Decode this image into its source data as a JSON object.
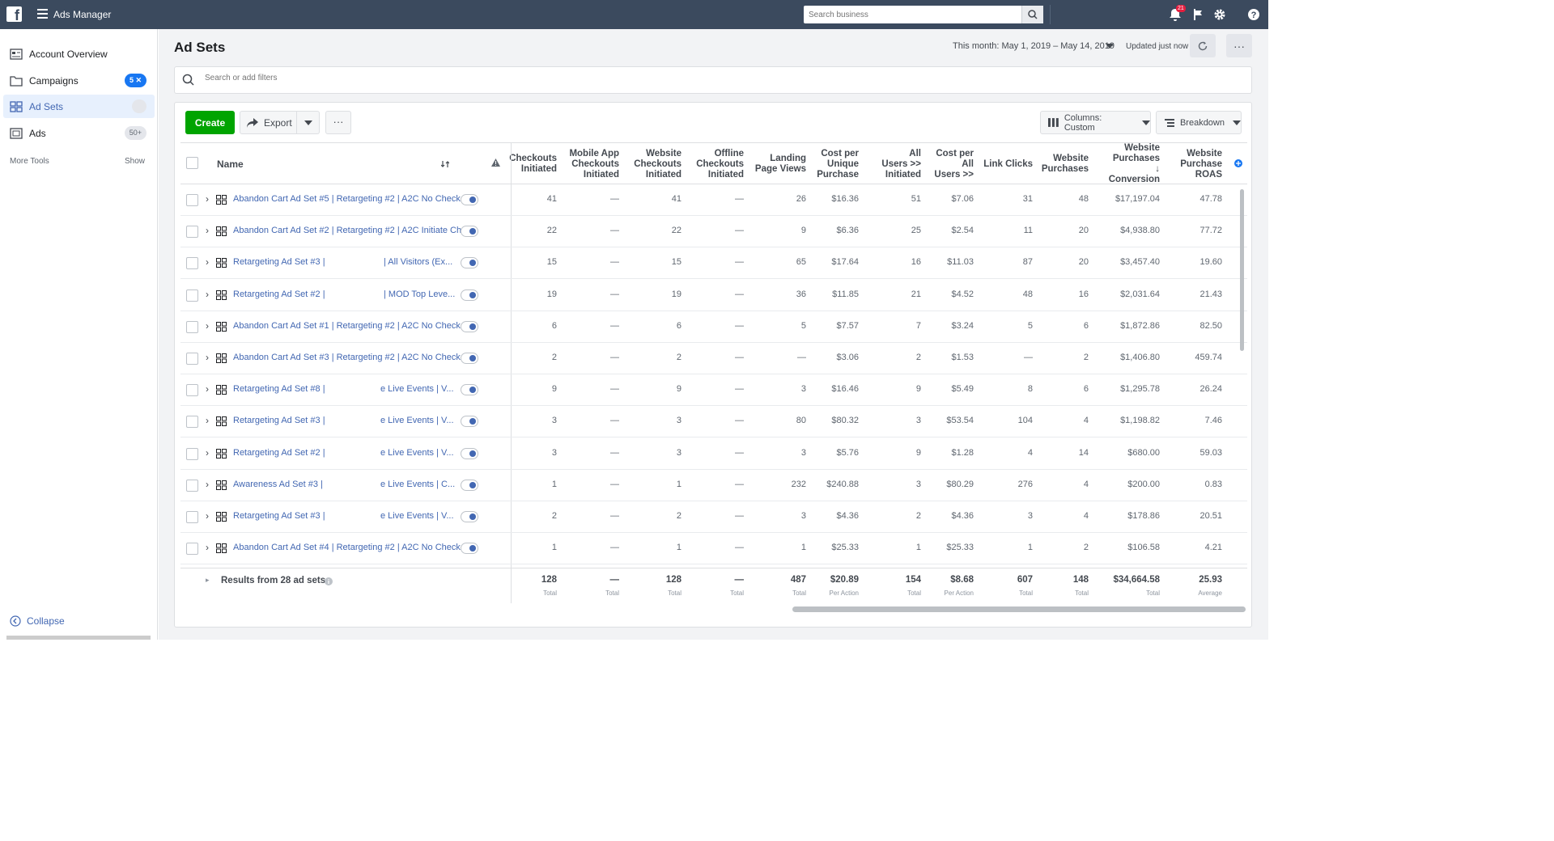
{
  "topbar": {
    "app_title": "Ads Manager",
    "search_placeholder": "Search business",
    "notification_count": "21"
  },
  "sidebar": {
    "items": [
      {
        "label": "Account Overview",
        "badge": ""
      },
      {
        "label": "Campaigns",
        "badge": "5 ✕"
      },
      {
        "label": "Ad Sets",
        "badge": ""
      },
      {
        "label": "Ads",
        "badge": "50+"
      }
    ],
    "more_tools": "More Tools",
    "show": "Show",
    "collapse": "Collapse"
  },
  "header": {
    "title": "Ad Sets",
    "date_range": "This month: May 1, 2019 – May 14, 2019",
    "updated": "Updated just now",
    "more": "···"
  },
  "filter": {
    "placeholder": "Search or add filters"
  },
  "toolbar": {
    "create": "Create",
    "export": "Export",
    "dots": "···",
    "columns": "Columns: Custom",
    "breakdown": "Breakdown"
  },
  "table": {
    "name_header": "Name",
    "columns": [
      [
        "Checkouts",
        "Initiated"
      ],
      [
        "Mobile App",
        "Checkouts",
        "Initiated"
      ],
      [
        "Website",
        "Checkouts",
        "Initiated"
      ],
      [
        "Offline",
        "Checkouts",
        "Initiated"
      ],
      [
        "Landing",
        "Page Views"
      ],
      [
        "Cost per",
        "Unique",
        "Purchase"
      ],
      [
        "All",
        "Users >>",
        "Initiated"
      ],
      [
        "Cost per",
        "All",
        "Users >>"
      ],
      [
        "Link Clicks"
      ],
      [
        "Website",
        "Purchases"
      ],
      [
        "Website",
        "Purchases ↓",
        "Conversion"
      ],
      [
        "Website",
        "Purchase",
        "ROAS"
      ]
    ],
    "rows": [
      {
        "name": "Abandon Cart Ad Set #5 | Retargeting #2 | A2C No Check ...",
        "name2": "",
        "values": [
          "41",
          "—",
          "41",
          "—",
          "26",
          "$16.36",
          "51",
          "$7.06",
          "31",
          "48",
          "$17,197.04",
          "47.78"
        ]
      },
      {
        "name": "Abandon Cart Ad Set #2 | Retargeting #2 | A2C Initiate Ch...",
        "name2": "",
        "values": [
          "22",
          "—",
          "22",
          "—",
          "9",
          "$6.36",
          "25",
          "$2.54",
          "11",
          "20",
          "$4,938.80",
          "77.72"
        ]
      },
      {
        "name": "Retargeting Ad Set #3 |",
        "name2": "| All Visitors (Ex...",
        "values": [
          "15",
          "—",
          "15",
          "—",
          "65",
          "$17.64",
          "16",
          "$11.03",
          "87",
          "20",
          "$3,457.40",
          "19.60"
        ]
      },
      {
        "name": "Retargeting Ad Set #2 |",
        "name2": "| MOD Top Leve...",
        "values": [
          "19",
          "—",
          "19",
          "—",
          "36",
          "$11.85",
          "21",
          "$4.52",
          "48",
          "16",
          "$2,031.64",
          "21.43"
        ]
      },
      {
        "name": "Abandon Cart Ad Set #1 | Retargeting #2 | A2C No Check ...",
        "name2": "",
        "values": [
          "6",
          "—",
          "6",
          "—",
          "5",
          "$7.57",
          "7",
          "$3.24",
          "5",
          "6",
          "$1,872.86",
          "82.50"
        ]
      },
      {
        "name": "Abandon Cart Ad Set #3 | Retargeting #2 | A2C No Check ...",
        "name2": "",
        "values": [
          "2",
          "—",
          "2",
          "—",
          "—",
          "$3.06",
          "2",
          "$1.53",
          "—",
          "2",
          "$1,406.80",
          "459.74"
        ]
      },
      {
        "name": "Retargeting Ad Set #8 |",
        "name2": "e Live Events | V...",
        "values": [
          "9",
          "—",
          "9",
          "—",
          "3",
          "$16.46",
          "9",
          "$5.49",
          "8",
          "6",
          "$1,295.78",
          "26.24"
        ]
      },
      {
        "name": "Retargeting Ad Set #3 |",
        "name2": "e Live Events | V...",
        "values": [
          "3",
          "—",
          "3",
          "—",
          "80",
          "$80.32",
          "3",
          "$53.54",
          "104",
          "4",
          "$1,198.82",
          "7.46"
        ]
      },
      {
        "name": "Retargeting Ad Set #2 |",
        "name2": "e Live Events | V...",
        "values": [
          "3",
          "—",
          "3",
          "—",
          "3",
          "$5.76",
          "9",
          "$1.28",
          "4",
          "14",
          "$680.00",
          "59.03"
        ]
      },
      {
        "name": "Awareness Ad Set #3 |",
        "name2": "e Live Events | C...",
        "values": [
          "1",
          "—",
          "1",
          "—",
          "232",
          "$240.88",
          "3",
          "$80.29",
          "276",
          "4",
          "$200.00",
          "0.83"
        ]
      },
      {
        "name": "Retargeting Ad Set #3 |",
        "name2": "e Live Events | V...",
        "values": [
          "2",
          "—",
          "2",
          "—",
          "3",
          "$4.36",
          "2",
          "$4.36",
          "3",
          "4",
          "$178.86",
          "20.51"
        ]
      },
      {
        "name": "Abandon Cart Ad Set #4 | Retargeting #2 | A2C No Check ...",
        "name2": "",
        "values": [
          "1",
          "—",
          "1",
          "—",
          "1",
          "$25.33",
          "1",
          "$25.33",
          "1",
          "2",
          "$106.58",
          "4.21"
        ]
      }
    ],
    "totals": {
      "label": "Results from 28 ad sets",
      "values": [
        "128",
        "—",
        "128",
        "—",
        "487",
        "$20.89",
        "154",
        "$8.68",
        "607",
        "148",
        "$34,664.58",
        "25.93"
      ],
      "labels": [
        "Total",
        "Total",
        "Total",
        "Total",
        "Total",
        "Per Action",
        "Total",
        "Per Action",
        "Total",
        "Total",
        "Total",
        "Average"
      ]
    }
  },
  "colors": {
    "topbar": "#3b4a5e",
    "link": "#4267b2",
    "create": "#00a400",
    "badge": "#e41e3f"
  }
}
